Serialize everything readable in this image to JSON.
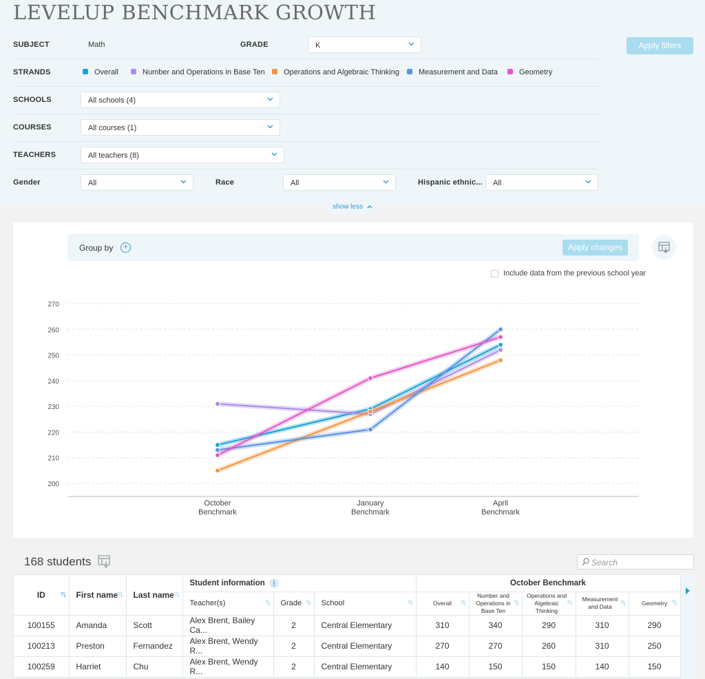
{
  "title": "LEVELUP BENCHMARK GROWTH",
  "filters": {
    "subject": {
      "label": "SUBJECT",
      "value": "Math"
    },
    "grade": {
      "label": "GRADE",
      "value": "K"
    },
    "apply_label": "Apply filters",
    "strands": {
      "label": "STRANDS",
      "items": [
        {
          "label": "Overall",
          "color": "#1ba3d8"
        },
        {
          "label": "Number and Operations in Base Ten",
          "color": "#a98de9"
        },
        {
          "label": "Operations and Algebraic Thinking",
          "color": "#f5943f"
        },
        {
          "label": "Measurement and Data",
          "color": "#5893e3"
        },
        {
          "label": "Geometry",
          "color": "#e357c9"
        }
      ]
    },
    "schools": {
      "label": "SCHOOLS",
      "value": "All schools (4)"
    },
    "courses": {
      "label": "COURSES",
      "value": "All courses (1)"
    },
    "teachers": {
      "label": "TEACHERS",
      "value": "All teachers (8)"
    },
    "gender": {
      "label": "Gender",
      "value": "All"
    },
    "race": {
      "label": "Race",
      "value": "All"
    },
    "hispanic": {
      "label": "Hispanic ethnic...",
      "value": "All"
    },
    "show_less": "show less"
  },
  "chart_panel": {
    "group_by": "Group by",
    "apply_changes": "Apply changes",
    "include_previous": "Include data from the previous school year"
  },
  "chart_data": {
    "type": "line",
    "categories": [
      [
        "October",
        "Benchmark"
      ],
      [
        "January",
        "Benchmark"
      ],
      [
        "April",
        "Benchmark"
      ]
    ],
    "ylim": [
      200,
      270
    ],
    "yticks": [
      200,
      210,
      220,
      230,
      240,
      250,
      260,
      270
    ],
    "grid": true,
    "series": [
      {
        "name": "Overall",
        "color": "#1ba3d8",
        "values": [
          215,
          229,
          254
        ]
      },
      {
        "name": "Number and Operations in Base Ten",
        "color": "#a98de9",
        "values": [
          231,
          227,
          252
        ]
      },
      {
        "name": "Operations and Algebraic Thinking",
        "color": "#f5943f",
        "values": [
          205,
          228,
          248
        ]
      },
      {
        "name": "Measurement and Data",
        "color": "#5893e3",
        "values": [
          213,
          221,
          260
        ]
      },
      {
        "name": "Geometry",
        "color": "#e357c9",
        "values": [
          211,
          241,
          257
        ]
      }
    ]
  },
  "students": {
    "count_label": "168 students",
    "search_placeholder": "Search",
    "headers": {
      "id": "ID",
      "first_name": "First name",
      "last_name": "Last name",
      "student_info": "Student information",
      "teachers": "Teacher(s)",
      "grade": "Grade",
      "school": "School",
      "october": "October Benchmark",
      "overall": "Overall",
      "nbt": "Number and Operations in Base Ten",
      "oa": "Operations and Algebraic Thinking",
      "md": "Measurement and Data",
      "geometry": "Geometry"
    },
    "rows": [
      {
        "id": "100155",
        "first": "Amanda",
        "last": "Scott",
        "teachers": "Alex Brent, Bailey Ca...",
        "grade": "2",
        "school": "Central Elementary",
        "overall": "310",
        "nbt": "340",
        "oa": "290",
        "md": "310",
        "geo": "290"
      },
      {
        "id": "100213",
        "first": "Preston",
        "last": "Fernandez",
        "teachers": "Alex Brent, Wendy R...",
        "grade": "2",
        "school": "Central Elementary",
        "overall": "270",
        "nbt": "270",
        "oa": "260",
        "md": "310",
        "geo": "250"
      },
      {
        "id": "100259",
        "first": "Harriet",
        "last": "Chu",
        "teachers": "Alex Brent, Wendy R...",
        "grade": "2",
        "school": "Central Elementary",
        "overall": "140",
        "nbt": "150",
        "oa": "150",
        "md": "140",
        "geo": "150"
      }
    ]
  }
}
